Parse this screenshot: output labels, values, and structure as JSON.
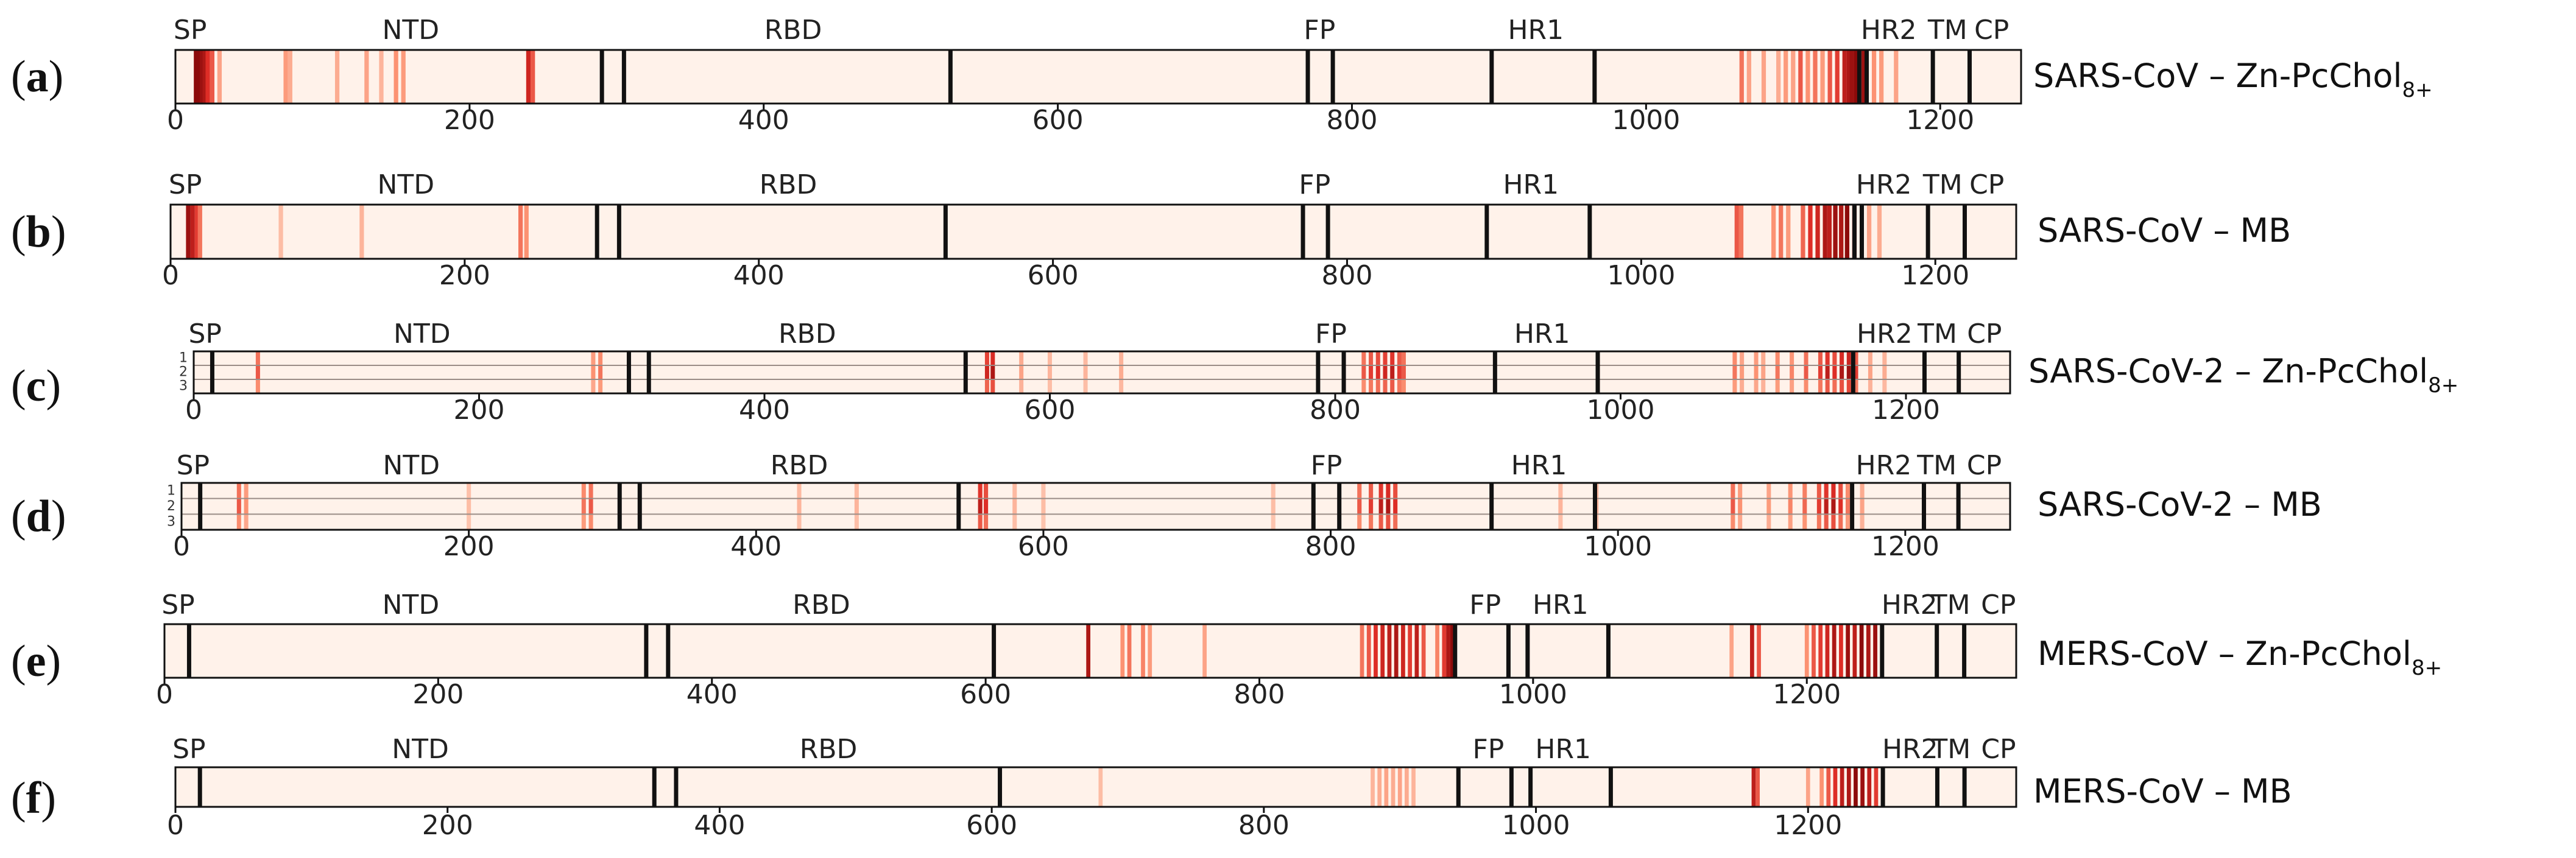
{
  "chart_data": [
    {
      "type": "heatmap",
      "panel": "(a)",
      "letter": "a",
      "title": "SARS-CoV – Zn-PcChol",
      "title_subscript": "8+",
      "xlabel": "",
      "ylabel": "",
      "xlim": [
        0,
        1255
      ],
      "ticks": [
        0,
        200,
        400,
        600,
        800,
        1000,
        1200
      ],
      "rows": [],
      "boundaries": [
        290,
        305,
        527,
        770,
        787,
        895,
        965,
        1145,
        1150,
        1195,
        1220
      ],
      "domains": [
        {
          "label": "SP",
          "position": 10
        },
        {
          "label": "NTD",
          "position": 160
        },
        {
          "label": "RBD",
          "position": 420
        },
        {
          "label": "FP",
          "position": 778
        },
        {
          "label": "HR1",
          "position": 925
        },
        {
          "label": "HR2",
          "position": 1165
        },
        {
          "label": "TM",
          "position": 1205
        },
        {
          "label": "CP",
          "position": 1235
        }
      ],
      "contacts": [
        [
          14,
          1.0
        ],
        [
          16,
          1.0
        ],
        [
          18,
          0.95
        ],
        [
          20,
          0.9
        ],
        [
          22,
          0.75
        ],
        [
          25,
          0.6
        ],
        [
          30,
          0.3
        ],
        [
          75,
          0.35
        ],
        [
          78,
          0.25
        ],
        [
          110,
          0.25
        ],
        [
          130,
          0.3
        ],
        [
          140,
          0.2
        ],
        [
          150,
          0.4
        ],
        [
          155,
          0.35
        ],
        [
          240,
          0.8
        ],
        [
          243,
          0.6
        ],
        [
          1065,
          0.5
        ],
        [
          1070,
          0.3
        ],
        [
          1080,
          0.3
        ],
        [
          1090,
          0.25
        ],
        [
          1095,
          0.35
        ],
        [
          1100,
          0.3
        ],
        [
          1105,
          0.6
        ],
        [
          1110,
          0.4
        ],
        [
          1115,
          0.5
        ],
        [
          1120,
          0.35
        ],
        [
          1125,
          0.6
        ],
        [
          1130,
          0.7
        ],
        [
          1135,
          0.85
        ],
        [
          1138,
          0.9
        ],
        [
          1140,
          0.95
        ],
        [
          1143,
          1.0
        ],
        [
          1148,
          0.95
        ],
        [
          1155,
          0.4
        ],
        [
          1160,
          0.35
        ],
        [
          1170,
          0.3
        ]
      ]
    },
    {
      "type": "heatmap",
      "panel": "(b)",
      "letter": "b",
      "title": "SARS-CoV – MB",
      "title_subscript": "",
      "xlabel": "",
      "ylabel": "",
      "xlim": [
        0,
        1255
      ],
      "ticks": [
        0,
        200,
        400,
        600,
        800,
        1000,
        1200
      ],
      "rows": [],
      "boundaries": [
        290,
        305,
        527,
        770,
        787,
        895,
        965,
        1145,
        1150,
        1195,
        1220
      ],
      "domains": [
        {
          "label": "SP",
          "position": 10
        },
        {
          "label": "NTD",
          "position": 160
        },
        {
          "label": "RBD",
          "position": 420
        },
        {
          "label": "FP",
          "position": 778
        },
        {
          "label": "HR1",
          "position": 925
        },
        {
          "label": "HR2",
          "position": 1165
        },
        {
          "label": "TM",
          "position": 1205
        },
        {
          "label": "CP",
          "position": 1235
        }
      ],
      "contacts": [
        [
          12,
          0.95
        ],
        [
          15,
          0.85
        ],
        [
          18,
          0.7
        ],
        [
          20,
          0.5
        ],
        [
          75,
          0.15
        ],
        [
          130,
          0.2
        ],
        [
          238,
          0.5
        ],
        [
          242,
          0.4
        ],
        [
          1065,
          0.6
        ],
        [
          1068,
          0.5
        ],
        [
          1090,
          0.4
        ],
        [
          1095,
          0.5
        ],
        [
          1100,
          0.35
        ],
        [
          1110,
          0.55
        ],
        [
          1115,
          0.75
        ],
        [
          1120,
          0.8
        ],
        [
          1125,
          0.9
        ],
        [
          1128,
          0.85
        ],
        [
          1132,
          0.95
        ],
        [
          1136,
          0.9
        ],
        [
          1140,
          1.0
        ],
        [
          1145,
          0.85
        ],
        [
          1155,
          0.3
        ],
        [
          1162,
          0.25
        ]
      ]
    },
    {
      "type": "heatmap",
      "panel": "(c)",
      "letter": "c",
      "title": "SARS-CoV-2 – Zn-PcChol",
      "title_subscript": "8+",
      "xlabel": "",
      "ylabel": "",
      "xlim": [
        0,
        1273
      ],
      "ticks": [
        0,
        200,
        400,
        600,
        800,
        1000,
        1200
      ],
      "rows": [
        "1",
        "2",
        "3"
      ],
      "boundaries": [
        13,
        305,
        319,
        541,
        788,
        806,
        912,
        984,
        1163,
        1213,
        1237
      ],
      "domains": [
        {
          "label": "SP",
          "position": 8
        },
        {
          "label": "NTD",
          "position": 160
        },
        {
          "label": "RBD",
          "position": 430
        },
        {
          "label": "FP",
          "position": 797
        },
        {
          "label": "HR1",
          "position": 945
        },
        {
          "label": "HR2",
          "position": 1185
        },
        {
          "label": "TM",
          "position": 1222
        },
        {
          "label": "CP",
          "position": 1255
        }
      ],
      "contacts": [
        [
          45,
          0.6
        ],
        [
          280,
          0.4
        ],
        [
          285,
          0.5
        ],
        [
          556,
          0.8
        ],
        [
          560,
          0.9
        ],
        [
          580,
          0.3
        ],
        [
          600,
          0.2
        ],
        [
          625,
          0.2
        ],
        [
          650,
          0.25
        ],
        [
          820,
          0.6
        ],
        [
          825,
          0.7
        ],
        [
          830,
          0.75
        ],
        [
          835,
          0.8
        ],
        [
          840,
          0.85
        ],
        [
          845,
          0.7
        ],
        [
          848,
          0.6
        ],
        [
          1080,
          0.5
        ],
        [
          1085,
          0.35
        ],
        [
          1095,
          0.4
        ],
        [
          1100,
          0.3
        ],
        [
          1110,
          0.5
        ],
        [
          1120,
          0.45
        ],
        [
          1130,
          0.6
        ],
        [
          1140,
          0.7
        ],
        [
          1145,
          0.85
        ],
        [
          1150,
          0.75
        ],
        [
          1155,
          0.9
        ],
        [
          1160,
          0.95
        ],
        [
          1165,
          0.7
        ],
        [
          1175,
          0.3
        ],
        [
          1185,
          0.25
        ]
      ]
    },
    {
      "type": "heatmap",
      "panel": "(d)",
      "letter": "d",
      "title": "SARS-CoV-2 – MB",
      "title_subscript": "",
      "xlabel": "",
      "ylabel": "",
      "xlim": [
        0,
        1273
      ],
      "ticks": [
        0,
        200,
        400,
        600,
        800,
        1000,
        1200
      ],
      "rows": [
        "1",
        "2",
        "3"
      ],
      "boundaries": [
        13,
        305,
        319,
        541,
        788,
        806,
        912,
        984,
        1163,
        1213,
        1237
      ],
      "domains": [
        {
          "label": "SP",
          "position": 8
        },
        {
          "label": "NTD",
          "position": 160
        },
        {
          "label": "RBD",
          "position": 430
        },
        {
          "label": "FP",
          "position": 797
        },
        {
          "label": "HR1",
          "position": 945
        },
        {
          "label": "HR2",
          "position": 1185
        },
        {
          "label": "TM",
          "position": 1222
        },
        {
          "label": "CP",
          "position": 1255
        }
      ],
      "contacts": [
        [
          40,
          0.6
        ],
        [
          45,
          0.4
        ],
        [
          200,
          0.15
        ],
        [
          280,
          0.5
        ],
        [
          285,
          0.6
        ],
        [
          430,
          0.2
        ],
        [
          470,
          0.2
        ],
        [
          556,
          0.85
        ],
        [
          560,
          0.75
        ],
        [
          580,
          0.2
        ],
        [
          600,
          0.15
        ],
        [
          760,
          0.15
        ],
        [
          820,
          0.6
        ],
        [
          828,
          0.7
        ],
        [
          835,
          0.85
        ],
        [
          840,
          0.9
        ],
        [
          845,
          0.75
        ],
        [
          960,
          0.2
        ],
        [
          985,
          0.2
        ],
        [
          1080,
          0.6
        ],
        [
          1085,
          0.4
        ],
        [
          1105,
          0.35
        ],
        [
          1120,
          0.45
        ],
        [
          1130,
          0.55
        ],
        [
          1140,
          0.7
        ],
        [
          1145,
          0.85
        ],
        [
          1150,
          0.9
        ],
        [
          1155,
          0.75
        ],
        [
          1160,
          0.5
        ],
        [
          1170,
          0.3
        ]
      ]
    },
    {
      "type": "heatmap",
      "panel": "(e)",
      "letter": "e",
      "title": "MERS-CoV – Zn-PcChol",
      "title_subscript": "8+",
      "xlabel": "",
      "ylabel": "",
      "xlim": [
        0,
        1353
      ],
      "ticks": [
        0,
        200,
        400,
        600,
        800,
        1000,
        1200
      ],
      "rows": [],
      "boundaries": [
        18,
        352,
        368,
        606,
        943,
        982,
        996,
        1055,
        1255,
        1295,
        1315
      ],
      "domains": [
        {
          "label": "SP",
          "position": 10
        },
        {
          "label": "NTD",
          "position": 180
        },
        {
          "label": "RBD",
          "position": 480
        },
        {
          "label": "FP",
          "position": 965
        },
        {
          "label": "HR1",
          "position": 1020
        },
        {
          "label": "HR2",
          "position": 1275
        },
        {
          "label": "TM",
          "position": 1305
        },
        {
          "label": "CP",
          "position": 1340
        }
      ],
      "contacts": [
        [
          675,
          0.9
        ],
        [
          700,
          0.4
        ],
        [
          705,
          0.5
        ],
        [
          715,
          0.45
        ],
        [
          720,
          0.35
        ],
        [
          760,
          0.3
        ],
        [
          875,
          0.5
        ],
        [
          880,
          0.6
        ],
        [
          885,
          0.75
        ],
        [
          890,
          0.8
        ],
        [
          895,
          0.85
        ],
        [
          900,
          0.9
        ],
        [
          905,
          0.8
        ],
        [
          910,
          0.7
        ],
        [
          915,
          0.85
        ],
        [
          920,
          0.6
        ],
        [
          930,
          0.45
        ],
        [
          935,
          0.7
        ],
        [
          938,
          0.9
        ],
        [
          941,
          1.0
        ],
        [
          1145,
          0.3
        ],
        [
          1160,
          0.85
        ],
        [
          1165,
          0.6
        ],
        [
          1200,
          0.4
        ],
        [
          1205,
          0.6
        ],
        [
          1210,
          0.7
        ],
        [
          1215,
          0.8
        ],
        [
          1220,
          0.9
        ],
        [
          1225,
          0.75
        ],
        [
          1230,
          0.95
        ],
        [
          1235,
          0.85
        ],
        [
          1240,
          1.0
        ],
        [
          1245,
          0.9
        ],
        [
          1250,
          0.95
        ]
      ]
    },
    {
      "type": "heatmap",
      "panel": "(f)",
      "letter": "f",
      "title": "MERS-CoV – MB",
      "title_subscript": "",
      "xlabel": "",
      "ylabel": "",
      "xlim": [
        0,
        1353
      ],
      "ticks": [
        0,
        200,
        400,
        600,
        800,
        1000,
        1200
      ],
      "rows": [],
      "boundaries": [
        18,
        352,
        368,
        606,
        943,
        982,
        996,
        1055,
        1255,
        1295,
        1315
      ],
      "domains": [
        {
          "label": "SP",
          "position": 10
        },
        {
          "label": "NTD",
          "position": 180
        },
        {
          "label": "RBD",
          "position": 480
        },
        {
          "label": "FP",
          "position": 965
        },
        {
          "label": "HR1",
          "position": 1020
        },
        {
          "label": "HR2",
          "position": 1275
        },
        {
          "label": "TM",
          "position": 1305
        },
        {
          "label": "CP",
          "position": 1340
        }
      ],
      "contacts": [
        [
          680,
          0.15
        ],
        [
          880,
          0.2
        ],
        [
          885,
          0.25
        ],
        [
          890,
          0.3
        ],
        [
          895,
          0.25
        ],
        [
          900,
          0.3
        ],
        [
          905,
          0.25
        ],
        [
          910,
          0.2
        ],
        [
          1160,
          0.85
        ],
        [
          1163,
          0.6
        ],
        [
          1200,
          0.3
        ],
        [
          1210,
          0.4
        ],
        [
          1215,
          0.6
        ],
        [
          1220,
          0.75
        ],
        [
          1225,
          0.85
        ],
        [
          1230,
          0.9
        ],
        [
          1235,
          1.0
        ],
        [
          1240,
          0.95
        ],
        [
          1245,
          0.85
        ],
        [
          1250,
          0.7
        ]
      ]
    }
  ]
}
